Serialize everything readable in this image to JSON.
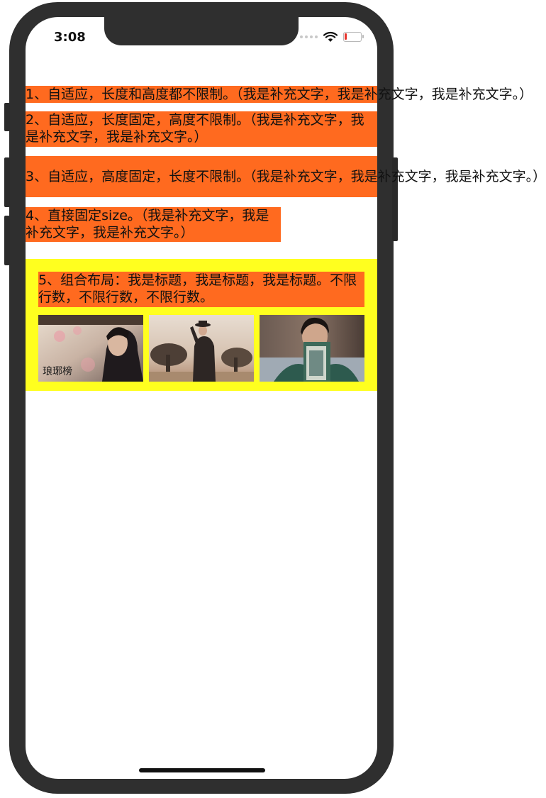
{
  "status_bar": {
    "time": "3:08",
    "battery_color": "#e8342c"
  },
  "colors": {
    "label_bg": "#ff6a1f",
    "group_bg": "#ffff1f"
  },
  "labels": [
    {
      "text": "1、自适应，长度和高度都不限制。（我是补充文字，我是补充文字，我是补充文字。）"
    },
    {
      "text": "2、自适应，长度固定，高度不限制。（我是补充文字，我是补充文字，我是补充文字。）"
    },
    {
      "text": "3、自适应，高度固定，长度不限制。（我是补充文字，我是补充文字，我是补充文字。）"
    },
    {
      "text": "4、直接固定size。（我是补充文字，我是补充文字，我是补充文字。）"
    }
  ],
  "group": {
    "title": "5、组合布局：我是标题，我是标题，我是标题。不限行数，不限行数，不限行数。",
    "images": [
      {
        "name": "photo-1",
        "caption": "琅琊榜"
      },
      {
        "name": "photo-2"
      },
      {
        "name": "photo-3"
      }
    ]
  }
}
